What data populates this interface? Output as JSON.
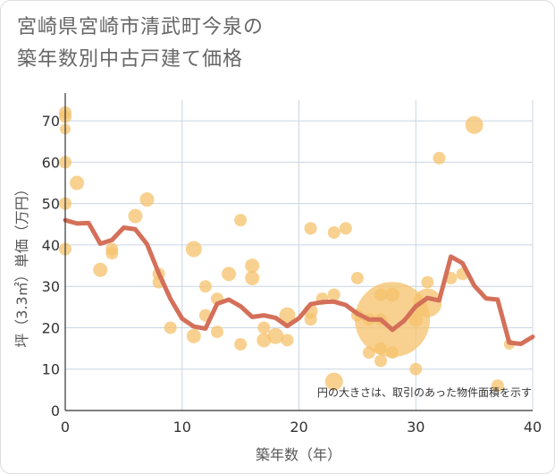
{
  "chart_data": {
    "type": "scatter",
    "title_lines": [
      "宮崎県宮崎市清武町今泉の",
      "築年数別中古戸建て価格"
    ],
    "xlabel": "築年数（年）",
    "ylabel": "坪（3.3㎡）単価（万円）",
    "xlim": [
      0,
      40
    ],
    "ylim": [
      0,
      75
    ],
    "xticks": [
      "0",
      "10",
      "20",
      "30",
      "40"
    ],
    "yticks": [
      "0",
      "10",
      "20",
      "30",
      "40",
      "50",
      "60",
      "70"
    ],
    "note": "円の大きさは、取引のあった物件面積を示す",
    "colors": {
      "bubble": "#f5c26b",
      "line": "#d4705a",
      "grid": "#c9d6e3",
      "axis": "#333333"
    },
    "bubbles": [
      {
        "x": 0,
        "y": 72,
        "s": 7
      },
      {
        "x": 0,
        "y": 71,
        "s": 7
      },
      {
        "x": 0,
        "y": 68,
        "s": 6
      },
      {
        "x": 0,
        "y": 60,
        "s": 7
      },
      {
        "x": 0,
        "y": 50,
        "s": 7
      },
      {
        "x": 0,
        "y": 39,
        "s": 7
      },
      {
        "x": 1,
        "y": 55,
        "s": 8
      },
      {
        "x": 3,
        "y": 34,
        "s": 8
      },
      {
        "x": 4,
        "y": 38,
        "s": 7
      },
      {
        "x": 4,
        "y": 39,
        "s": 7
      },
      {
        "x": 6,
        "y": 47,
        "s": 8
      },
      {
        "x": 7,
        "y": 51,
        "s": 8
      },
      {
        "x": 8,
        "y": 33,
        "s": 7
      },
      {
        "x": 8,
        "y": 31,
        "s": 7
      },
      {
        "x": 9,
        "y": 20,
        "s": 7
      },
      {
        "x": 11,
        "y": 39,
        "s": 9
      },
      {
        "x": 11,
        "y": 18,
        "s": 8
      },
      {
        "x": 12,
        "y": 30,
        "s": 7
      },
      {
        "x": 12,
        "y": 23,
        "s": 7
      },
      {
        "x": 13,
        "y": 27,
        "s": 7
      },
      {
        "x": 13,
        "y": 19,
        "s": 7
      },
      {
        "x": 14,
        "y": 33,
        "s": 8
      },
      {
        "x": 15,
        "y": 46,
        "s": 7
      },
      {
        "x": 15,
        "y": 16,
        "s": 7
      },
      {
        "x": 16,
        "y": 35,
        "s": 8
      },
      {
        "x": 16,
        "y": 32,
        "s": 8
      },
      {
        "x": 17,
        "y": 20,
        "s": 7
      },
      {
        "x": 17,
        "y": 17,
        "s": 8
      },
      {
        "x": 18,
        "y": 18,
        "s": 9
      },
      {
        "x": 19,
        "y": 23,
        "s": 9
      },
      {
        "x": 19,
        "y": 17,
        "s": 7
      },
      {
        "x": 21,
        "y": 44,
        "s": 7
      },
      {
        "x": 21,
        "y": 24,
        "s": 8
      },
      {
        "x": 21,
        "y": 22,
        "s": 7
      },
      {
        "x": 22,
        "y": 27,
        "s": 7
      },
      {
        "x": 23,
        "y": 43,
        "s": 7
      },
      {
        "x": 23,
        "y": 28,
        "s": 7
      },
      {
        "x": 23,
        "y": 7,
        "s": 10
      },
      {
        "x": 24,
        "y": 44,
        "s": 7
      },
      {
        "x": 25,
        "y": 32,
        "s": 7
      },
      {
        "x": 25,
        "y": 23,
        "s": 7
      },
      {
        "x": 26,
        "y": 22,
        "s": 7
      },
      {
        "x": 26,
        "y": 14,
        "s": 7
      },
      {
        "x": 27,
        "y": 28,
        "s": 7
      },
      {
        "x": 27,
        "y": 22,
        "s": 7
      },
      {
        "x": 27,
        "y": 15,
        "s": 7
      },
      {
        "x": 27,
        "y": 12,
        "s": 7
      },
      {
        "x": 28,
        "y": 22,
        "s": 42
      },
      {
        "x": 28,
        "y": 28,
        "s": 8
      },
      {
        "x": 28,
        "y": 14,
        "s": 7
      },
      {
        "x": 30,
        "y": 22,
        "s": 8
      },
      {
        "x": 30,
        "y": 10,
        "s": 7
      },
      {
        "x": 31,
        "y": 31,
        "s": 7
      },
      {
        "x": 31,
        "y": 26,
        "s": 16
      },
      {
        "x": 32,
        "y": 61,
        "s": 7
      },
      {
        "x": 33,
        "y": 32,
        "s": 7
      },
      {
        "x": 34,
        "y": 33,
        "s": 7
      },
      {
        "x": 35,
        "y": 69,
        "s": 10
      },
      {
        "x": 37,
        "y": 6,
        "s": 7
      },
      {
        "x": 38,
        "y": 16,
        "s": 6
      }
    ],
    "trend": [
      [
        0,
        46
      ],
      [
        1,
        45.2
      ],
      [
        2,
        45.3
      ],
      [
        3,
        40.3
      ],
      [
        4,
        41.2
      ],
      [
        5,
        44.2
      ],
      [
        6,
        43.8
      ],
      [
        7,
        40.2
      ],
      [
        8,
        33.2
      ],
      [
        9,
        27
      ],
      [
        10,
        22.2
      ],
      [
        11,
        20.3
      ],
      [
        12,
        19.8
      ],
      [
        13,
        25.8
      ],
      [
        14,
        26.8
      ],
      [
        15,
        25.2
      ],
      [
        16,
        22.6
      ],
      [
        17,
        23
      ],
      [
        18,
        22.4
      ],
      [
        19,
        20.4
      ],
      [
        20,
        22.3
      ],
      [
        21,
        25.7
      ],
      [
        22,
        26.2
      ],
      [
        23,
        26.3
      ],
      [
        24,
        25.5
      ],
      [
        25,
        23.4
      ],
      [
        26,
        22
      ],
      [
        27,
        22
      ],
      [
        28,
        19.5
      ],
      [
        29,
        21.7
      ],
      [
        30,
        25.2
      ],
      [
        31,
        27.2
      ],
      [
        32,
        26.6
      ],
      [
        33,
        37.2
      ],
      [
        34,
        35.6
      ],
      [
        35,
        30.2
      ],
      [
        36,
        27.1
      ],
      [
        37,
        26.8
      ],
      [
        38,
        16.4
      ],
      [
        39,
        16.1
      ],
      [
        40,
        17.8
      ]
    ]
  }
}
